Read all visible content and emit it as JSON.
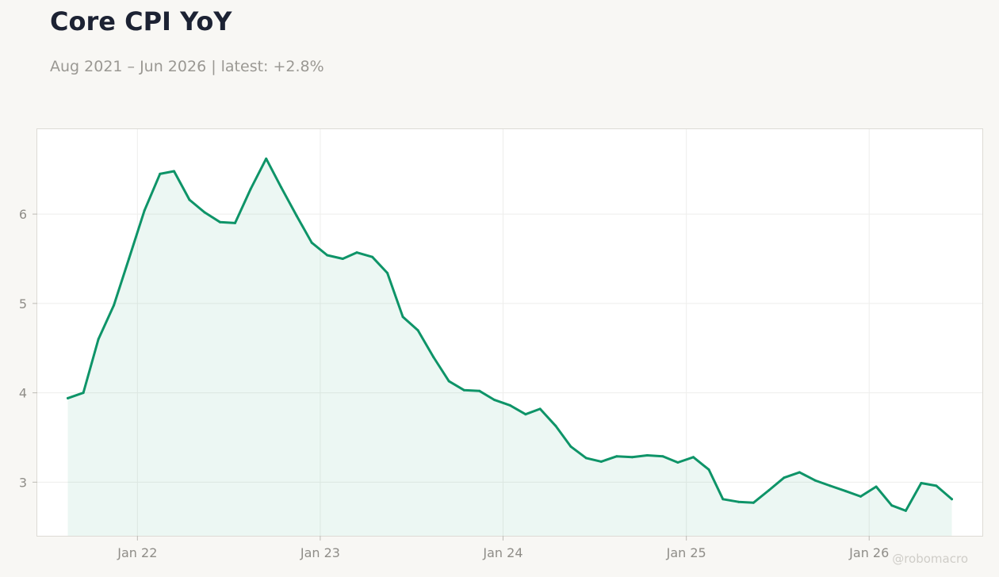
{
  "header": {
    "title": "Core CPI YoY",
    "subtitle": "Aug 2021 – Jun 2026 | latest: +2.8%"
  },
  "watermark": "@robomacro",
  "colors": {
    "line": "#0e9468",
    "fill": "#0e9468",
    "background": "#f8f7f4",
    "plot_background": "#ffffff",
    "grid": "#eeeeec",
    "frame": "#dddbd5"
  },
  "chart_data": {
    "type": "area",
    "title": "Core CPI YoY",
    "xlabel": "",
    "ylabel": "",
    "x_ticks": [
      "Jan 22",
      "Jan 23",
      "Jan 24",
      "Jan 25",
      "Jan 26"
    ],
    "y_ticks": [
      3,
      4,
      5,
      6
    ],
    "xlim": [
      "2021-06-15",
      "2026-08-15"
    ],
    "ylim": [
      2.4,
      6.95
    ],
    "grid": true,
    "legend": "none",
    "series": [
      {
        "x": [
          "2021-08",
          "2021-09",
          "2021-10",
          "2021-11",
          "2021-12",
          "2022-01",
          "2022-02",
          "2022-03",
          "2022-04",
          "2022-05",
          "2022-06",
          "2022-07",
          "2022-08",
          "2022-09",
          "2022-10",
          "2022-11",
          "2022-12",
          "2023-01",
          "2023-02",
          "2023-03",
          "2023-04",
          "2023-05",
          "2023-06",
          "2023-07",
          "2023-08",
          "2023-09",
          "2023-10",
          "2023-11",
          "2023-12",
          "2024-01",
          "2024-02",
          "2024-03",
          "2024-04",
          "2024-05",
          "2024-06",
          "2024-07",
          "2024-08",
          "2024-09",
          "2024-10",
          "2024-11",
          "2024-12",
          "2025-01",
          "2025-02",
          "2025-03",
          "2025-04",
          "2025-05",
          "2025-06",
          "2025-07",
          "2025-08",
          "2025-09",
          "2025-10",
          "2025-11",
          "2025-12",
          "2026-01",
          "2026-02",
          "2026-03",
          "2026-04",
          "2026-05",
          "2026-06"
        ],
        "values": [
          3.94,
          4.0,
          4.6,
          4.98,
          5.5,
          6.04,
          6.45,
          6.48,
          6.16,
          6.02,
          5.91,
          5.9,
          6.28,
          6.62,
          6.3,
          5.98,
          5.68,
          5.54,
          5.5,
          5.57,
          5.52,
          5.34,
          4.85,
          4.7,
          4.4,
          4.13,
          4.03,
          4.02,
          3.92,
          3.86,
          3.76,
          3.82,
          3.63,
          3.4,
          3.27,
          3.23,
          3.29,
          3.28,
          3.3,
          3.29,
          3.22,
          3.28,
          3.14,
          2.81,
          2.78,
          2.77,
          2.91,
          3.05,
          3.11,
          3.02,
          2.96,
          2.9,
          2.84,
          2.95,
          2.74,
          2.68,
          2.99,
          2.96,
          2.81
        ]
      }
    ]
  }
}
